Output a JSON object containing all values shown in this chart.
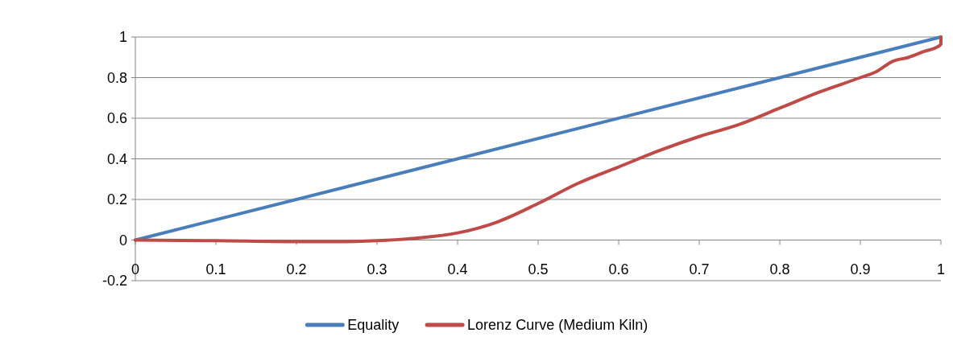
{
  "chart_data": {
    "type": "line",
    "xlim": [
      0,
      1
    ],
    "ylim": [
      -0.2,
      1
    ],
    "xticks": [
      0,
      0.1,
      0.2,
      0.3,
      0.4,
      0.5,
      0.6,
      0.7,
      0.8,
      0.9,
      1
    ],
    "yticks": [
      -0.2,
      0,
      0.2,
      0.4,
      0.6,
      0.8,
      1
    ],
    "grid": "y",
    "legend": "bottom",
    "marker": "none",
    "line_style": "solid",
    "series": [
      {
        "name": "Equality",
        "color": "#4a7ebb",
        "x": [
          0,
          1
        ],
        "values": [
          0,
          1
        ]
      },
      {
        "name": "Lorenz Curve (Medium Kiln)",
        "color": "#be4b48",
        "x": [
          0,
          0.1,
          0.2,
          0.25,
          0.3,
          0.35,
          0.4,
          0.45,
          0.5,
          0.55,
          0.6,
          0.65,
          0.7,
          0.75,
          0.8,
          0.85,
          0.9,
          0.92,
          0.94,
          0.96,
          0.98,
          0.995,
          1,
          1
        ],
        "values": [
          0,
          -0.003,
          -0.008,
          -0.008,
          -0.003,
          0.01,
          0.035,
          0.09,
          0.18,
          0.28,
          0.36,
          0.44,
          0.51,
          0.57,
          0.65,
          0.73,
          0.8,
          0.83,
          0.88,
          0.9,
          0.93,
          0.95,
          0.965,
          1
        ]
      }
    ]
  }
}
